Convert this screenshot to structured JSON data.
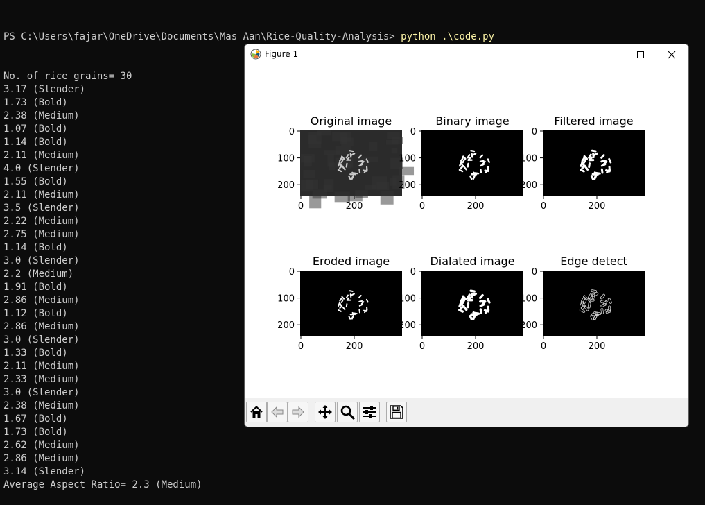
{
  "terminal": {
    "prompt": "PS C:\\Users\\fajar\\OneDrive\\Documents\\Mas Aan\\Rice-Quality-Analysis> ",
    "command": "python .\\code.py",
    "lines": [
      "No. of rice grains= 30",
      "3.17 (Slender)",
      "1.73 (Bold)",
      "2.38 (Medium)",
      "1.07 (Bold)",
      "1.14 (Bold)",
      "2.11 (Medium)",
      "4.0 (Slender)",
      "1.55 (Bold)",
      "2.11 (Medium)",
      "3.5 (Slender)",
      "2.22 (Medium)",
      "2.75 (Medium)",
      "1.14 (Bold)",
      "3.0 (Slender)",
      "2.2 (Medium)",
      "1.91 (Bold)",
      "2.86 (Medium)",
      "1.12 (Bold)",
      "2.86 (Medium)",
      "3.0 (Slender)",
      "1.33 (Bold)",
      "2.11 (Medium)",
      "2.33 (Medium)",
      "3.0 (Slender)",
      "2.38 (Medium)",
      "1.67 (Bold)",
      "1.73 (Bold)",
      "2.62 (Medium)",
      "2.86 (Medium)",
      "3.14 (Slender)",
      "Average Aspect Ratio= 2.3 (Medium)"
    ]
  },
  "window": {
    "title": "Figure 1"
  },
  "plots": [
    {
      "title": "Original image",
      "y_ticks": [
        "0",
        "100",
        "200"
      ],
      "x_ticks": [
        "0",
        "200"
      ],
      "style": "original"
    },
    {
      "title": "Binary image",
      "y_ticks": [
        "0",
        "100",
        "200"
      ],
      "x_ticks": [
        "0",
        "200"
      ],
      "style": "binary"
    },
    {
      "title": "Filtered image",
      "y_ticks": [
        "0",
        "100",
        "200"
      ],
      "x_ticks": [
        "0",
        "200"
      ],
      "style": "filtered"
    },
    {
      "title": "Eroded image",
      "y_ticks": [
        "0",
        "100",
        "200"
      ],
      "x_ticks": [
        "0",
        "200"
      ],
      "style": "eroded"
    },
    {
      "title": "Dialated image",
      "y_ticks": [
        "0",
        "100",
        "200"
      ],
      "x_ticks": [
        "0",
        "200"
      ],
      "style": "dilated"
    },
    {
      "title": "Edge detect",
      "y_ticks": [
        "0",
        "100",
        "200"
      ],
      "x_ticks": [
        "0",
        "200"
      ],
      "style": "edge"
    }
  ],
  "toolbar": {
    "buttons": [
      "home-icon",
      "back-arrow-icon",
      "forward-arrow-icon",
      "pan-icon",
      "zoom-icon",
      "configure-subplots-icon",
      "save-icon"
    ]
  },
  "colors": {
    "terminal_bg": "#0c0c0c",
    "terminal_text": "#cccccc",
    "command_text": "#f9f1a5"
  }
}
